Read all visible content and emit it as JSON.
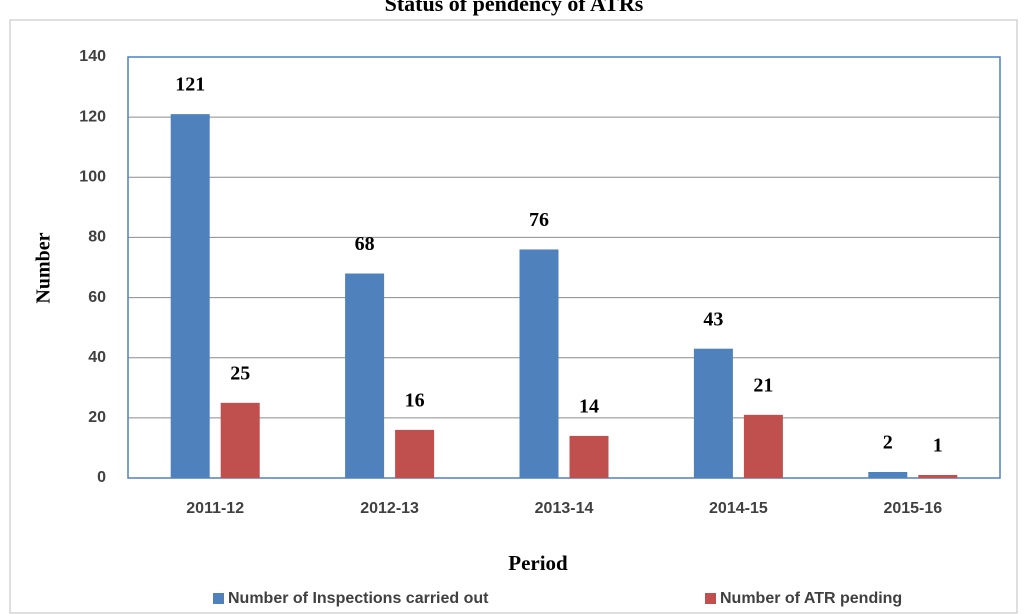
{
  "chart_data": {
    "type": "bar",
    "title": "Status of pendency of ATRs",
    "x_label": "Period",
    "y_label": "Number",
    "categories": [
      "2011-12",
      "2012-13",
      "2013-14",
      "2014-15",
      "2015-16"
    ],
    "series": [
      {
        "name": "Number of Inspections carried out",
        "color": "#4f81bd",
        "values": [
          121,
          68,
          76,
          43,
          2
        ]
      },
      {
        "name": "Number of ATR pending",
        "color": "#c0504d",
        "values": [
          25,
          16,
          14,
          21,
          1
        ]
      }
    ],
    "ylim": [
      0,
      140
    ],
    "yticks": [
      0,
      20,
      40,
      60,
      80,
      100,
      120,
      140
    ],
    "grid": true,
    "legend": "bottom"
  }
}
